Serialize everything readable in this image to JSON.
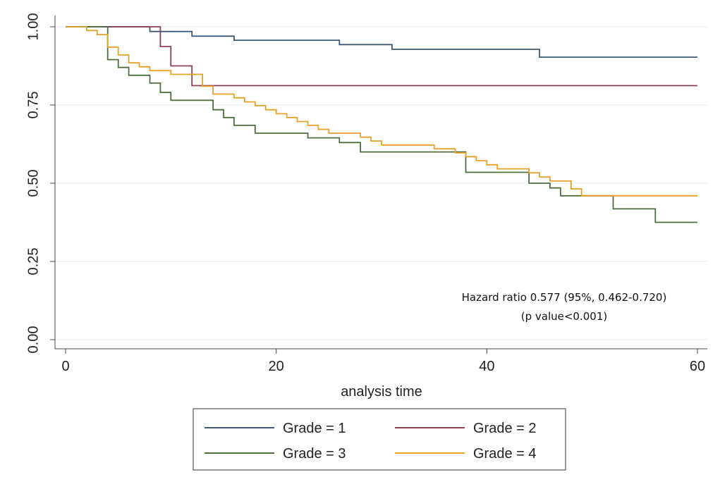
{
  "chart_data": {
    "type": "line",
    "title": "",
    "xlabel": "analysis time",
    "ylabel": "",
    "xlim": [
      0,
      60
    ],
    "ylim": [
      0,
      1
    ],
    "x_ticks": [
      0,
      20,
      40,
      60
    ],
    "y_ticks": [
      "0.00",
      "0.25",
      "0.50",
      "0.75",
      "1.00"
    ],
    "grid": true,
    "legend_placement": "bottom",
    "step": true,
    "annotation": [
      "Hazard ratio 0.577 (95%, 0.462-0.720)",
      "(p value<0.001)"
    ],
    "series": [
      {
        "name": "Grade = 1",
        "color": "#3c5a78",
        "x": [
          0,
          8,
          12,
          16,
          26,
          31,
          45,
          60
        ],
        "y": [
          1.0,
          0.985,
          0.97,
          0.957,
          0.943,
          0.928,
          0.903,
          0.903
        ]
      },
      {
        "name": "Grade = 2",
        "color": "#8f3f52",
        "x": [
          0,
          9,
          10,
          12,
          60
        ],
        "y": [
          1.0,
          0.937,
          0.875,
          0.812,
          0.812
        ]
      },
      {
        "name": "Grade = 3",
        "color": "#4e6f3c",
        "x": [
          0,
          3,
          4,
          5,
          6,
          8,
          9,
          10,
          14,
          15,
          16,
          18,
          23,
          26,
          28,
          38,
          44,
          46,
          47,
          52,
          56,
          60
        ],
        "y": [
          1.0,
          1.0,
          0.895,
          0.87,
          0.845,
          0.82,
          0.79,
          0.765,
          0.735,
          0.71,
          0.685,
          0.66,
          0.645,
          0.63,
          0.6,
          0.535,
          0.5,
          0.485,
          0.46,
          0.418,
          0.375,
          0.375
        ]
      },
      {
        "name": "Grade = 4",
        "color": "#e7a127",
        "x": [
          0,
          2,
          3,
          4,
          5,
          6,
          7,
          8,
          10,
          13,
          14,
          16,
          17,
          18,
          19,
          20,
          21,
          22,
          23,
          24,
          25,
          28,
          29,
          30,
          35,
          37,
          38,
          39,
          40,
          41,
          44,
          45,
          46,
          48,
          49,
          60
        ],
        "y": [
          1.0,
          0.988,
          0.975,
          0.935,
          0.91,
          0.885,
          0.872,
          0.86,
          0.848,
          0.81,
          0.785,
          0.773,
          0.76,
          0.748,
          0.735,
          0.722,
          0.71,
          0.697,
          0.685,
          0.672,
          0.66,
          0.647,
          0.635,
          0.622,
          0.61,
          0.597,
          0.585,
          0.572,
          0.559,
          0.546,
          0.533,
          0.52,
          0.507,
          0.482,
          0.46,
          0.46
        ]
      }
    ]
  }
}
